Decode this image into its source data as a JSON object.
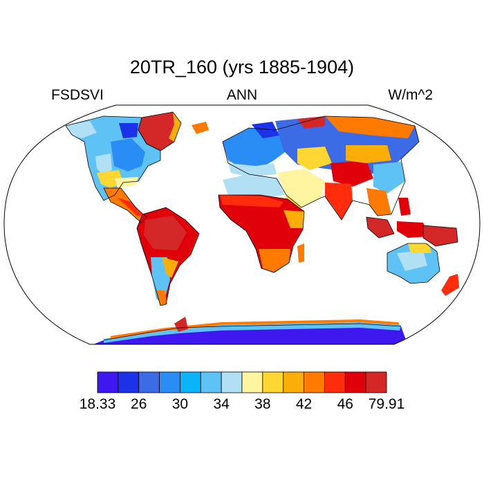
{
  "title": "20TR_160 (yrs 1885-1904)",
  "left_string": "FSDSVI",
  "center_string": "ANN",
  "right_string": "W/m^2",
  "map": {
    "projection": "robinson",
    "coastline_color": "#000000",
    "frame_color": "#000000"
  },
  "colorbar": {
    "colors": [
      "#3f18f0",
      "#1c32e8",
      "#3c6be6",
      "#2a8cf5",
      "#0bb4f8",
      "#5ec2f4",
      "#b1dff3",
      "#fff5a0",
      "#ffd732",
      "#fbad08",
      "#ff7a00",
      "#ff2d0b",
      "#e0000a",
      "#d42828"
    ],
    "labels": [
      {
        "text": "18.33",
        "index": 0
      },
      {
        "text": "26",
        "index": 2
      },
      {
        "text": "30",
        "index": 4
      },
      {
        "text": "34",
        "index": 6
      },
      {
        "text": "38",
        "index": 8
      },
      {
        "text": "42",
        "index": 10
      },
      {
        "text": "46",
        "index": 12
      },
      {
        "text": "79.91",
        "index": 14
      }
    ]
  }
}
